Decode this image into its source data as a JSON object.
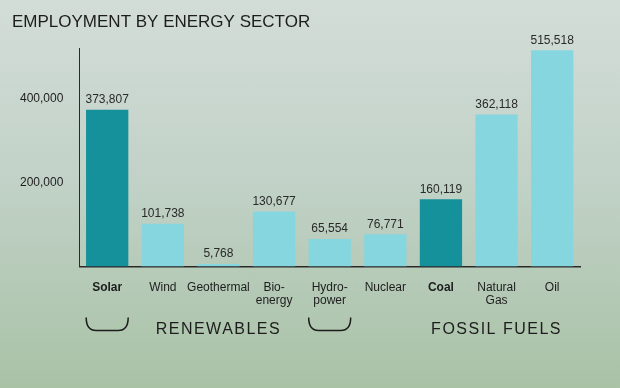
{
  "chart_data": {
    "type": "bar",
    "title": "EMPLOYMENT BY ENERGY SECTOR",
    "categories": [
      "Solar",
      "Wind",
      "Geothermal",
      "Bio-\nenergy",
      "Hydro-\npower",
      "Nuclear",
      "Coal",
      "Natural\nGas",
      "Oil"
    ],
    "values": [
      373807,
      101738,
      5768,
      130677,
      65554,
      76771,
      160119,
      362118,
      515518
    ],
    "value_labels": [
      "373,807",
      "101,738",
      "5,768",
      "130,677",
      "65,554",
      "76,771",
      "160,119",
      "362,118",
      "515,518"
    ],
    "colors": [
      "#14919a",
      "#86d6df",
      "#86d6df",
      "#86d6df",
      "#86d6df",
      "#86d6df",
      "#14919a",
      "#86d6df",
      "#86d6df"
    ],
    "ylim": [
      0,
      520000
    ],
    "yticks": [
      {
        "value": 200000,
        "label": "200,000"
      },
      {
        "value": 400000,
        "label": "400,000"
      }
    ],
    "grid": false,
    "data_labels": true,
    "annotations": [
      {
        "text": "RENEWABLES",
        "from": "Solar",
        "to": "Hydro-\npower"
      },
      {
        "text": "FOSSIL FUELS",
        "from": "Coal",
        "to": "Oil"
      }
    ]
  }
}
